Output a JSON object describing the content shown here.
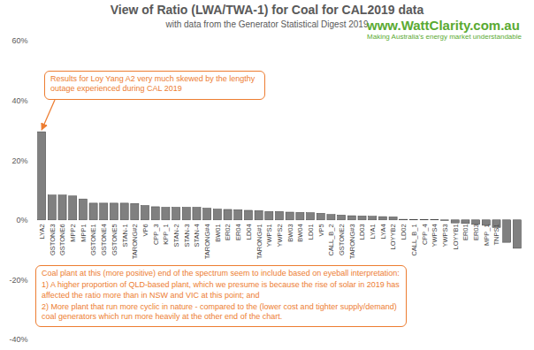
{
  "chart_data": {
    "type": "bar",
    "title": "View of Ratio (LWA/TWA-1) for Coal for CAL2019 data",
    "subtitle": "with data from the Generator Statistical Digest 2019",
    "watermark": [
      "www.WattClarity.com.au",
      "Making Australia's energy market understandable"
    ],
    "annotations": [
      {
        "lines": [
          "Results for Loy Yang A2 very much skewed by the lengthy outage experienced during CAL 2019"
        ]
      },
      {
        "lines": [
          "Coal plant at this (more positive) end of the spectrum seem to include based on eyeball interpretation:",
          "1)  A higher proportion of QLD-based plant, which we presume is because the rise of solar in 2019 has affected the ratio more than in NSW and VIC at this point; and",
          "2)  More plant that run more cyclic in nature - compared to the (lower cost and tighter supply/demand) coal generators which run more heavily at the other end of the chart."
        ]
      }
    ],
    "categories": [
      "LYA2",
      "GSTONE3",
      "GSTONE6",
      "MPP2",
      "MPP1",
      "GSTONE1",
      "GSTONE4",
      "GSTONE5",
      "STAN-1",
      "TARONG#2",
      "VP6",
      "CPP_3",
      "KPP_1",
      "STAN-2",
      "STAN-3",
      "STAN-4",
      "TARONG#4",
      "BW01",
      "ER02",
      "ER04",
      "LD04",
      "TARONG#1",
      "YWPS1",
      "YWPS2",
      "BW03",
      "BW04",
      "LD01",
      "VP5",
      "CALL_B_2",
      "GSTONE2",
      "TARONG#3",
      "LD03",
      "LYA1",
      "LYA4",
      "LOYYB2",
      "LD02",
      "CALL_B_1",
      "CPP_4",
      "YWPS4",
      "YWPS3",
      "LOYYB1",
      "ER01",
      "ER03",
      "MPP_1",
      "TNPS1",
      null,
      null
    ],
    "values": [
      29.5,
      8.3,
      8.3,
      8.0,
      7.0,
      5.6,
      5.6,
      5.6,
      5.6,
      5.5,
      4.8,
      4.4,
      4.2,
      4.2,
      4.2,
      4.2,
      3.9,
      3.6,
      3.5,
      3.4,
      3.2,
      3.1,
      2.8,
      2.8,
      2.6,
      2.5,
      2.4,
      2.2,
      1.8,
      1.6,
      1.4,
      1.3,
      1.2,
      1.1,
      1.0,
      0.2,
      0.1,
      0.1,
      0.05,
      -0.2,
      -1.0,
      -1.2,
      -1.5,
      -1.8,
      -2.5,
      -7.5,
      -9.5
    ],
    "color": "#808080",
    "ylim": [
      -40,
      60
    ],
    "yticks": [
      {
        "value": -40,
        "label": "-40%"
      },
      {
        "value": -20,
        "label": "-20%"
      },
      {
        "value": 0,
        "label": "0%"
      },
      {
        "value": 20,
        "label": "20%"
      },
      {
        "value": 40,
        "label": "40%"
      },
      {
        "value": 60,
        "label": "60%"
      }
    ],
    "grid": false
  }
}
